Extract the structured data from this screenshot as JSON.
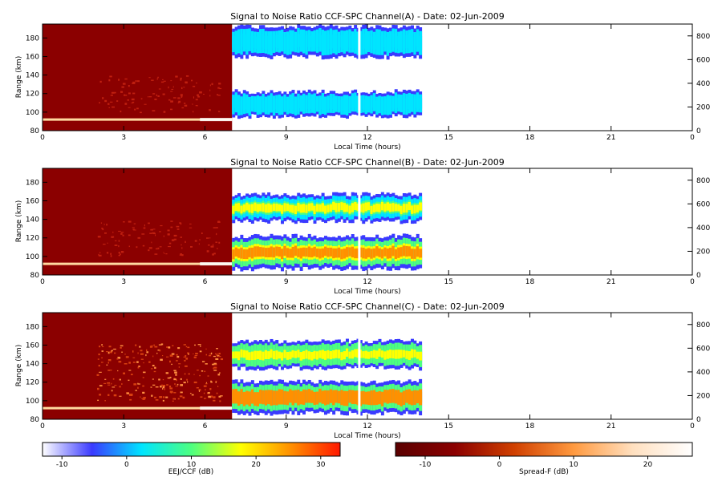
{
  "chart_data": [
    {
      "type": "heatmap",
      "title": "Signal to Noise Ratio CCF-SPC Channel(A) - Date: 02-Jun-2009",
      "xlabel": "Local Time (hours)",
      "ylabel": "Range (km)",
      "xlim": [
        0,
        24
      ],
      "ylim": [
        80,
        195
      ],
      "x_ticks": [
        "0",
        "3",
        "6",
        "9",
        "12",
        "15",
        "18",
        "21",
        "0"
      ],
      "y_ticks": [
        "80",
        "100",
        "120",
        "140",
        "160",
        "180"
      ],
      "y2_ticks": [
        "0",
        "200",
        "400",
        "600",
        "800"
      ],
      "y2lim": [
        0,
        900
      ],
      "spreadf_window_hours": [
        0,
        7
      ],
      "eej_window_hours": [
        7,
        14
      ],
      "data_gap_hour": 11.7,
      "eej_upper_layer_range_y2": [
        620,
        880
      ],
      "eej_lower_layer_range_y2": [
        120,
        330
      ],
      "eej_peak_db": 5
    },
    {
      "type": "heatmap",
      "title": "Signal to Noise Ratio CCF-SPC Channel(B) - Date: 02-Jun-2009",
      "xlabel": "Local Time (hours)",
      "ylabel": "Range (km)",
      "xlim": [
        0,
        24
      ],
      "ylim": [
        80,
        195
      ],
      "x_ticks": [
        "0",
        "3",
        "6",
        "9",
        "12",
        "15",
        "18",
        "21",
        "0"
      ],
      "y_ticks": [
        "80",
        "100",
        "120",
        "140",
        "160",
        "180"
      ],
      "y2_ticks": [
        "0",
        "200",
        "400",
        "600",
        "800"
      ],
      "y2lim": [
        0,
        900
      ],
      "spreadf_window_hours": [
        0,
        7
      ],
      "eej_window_hours": [
        7,
        14
      ],
      "data_gap_hour": 11.7,
      "eej_upper_layer_range_y2": [
        450,
        680
      ],
      "eej_lower_layer_range_y2": [
        50,
        330
      ],
      "eej_peak_db": 28
    },
    {
      "type": "heatmap",
      "title": "Signal to Noise Ratio CCF-SPC Channel(C) - Date: 02-Jun-2009",
      "xlabel": "Local Time (hours)",
      "ylabel": "Range (km)",
      "xlim": [
        0,
        24
      ],
      "ylim": [
        80,
        195
      ],
      "x_ticks": [
        "0",
        "3",
        "6",
        "9",
        "12",
        "15",
        "18",
        "21",
        "0"
      ],
      "y_ticks": [
        "80",
        "100",
        "120",
        "140",
        "160",
        "180"
      ],
      "y2_ticks": [
        "0",
        "200",
        "400",
        "600",
        "800"
      ],
      "y2lim": [
        0,
        900
      ],
      "spreadf_window_hours": [
        0,
        7
      ],
      "eej_window_hours": [
        7,
        14
      ],
      "data_gap_hour": 11.7,
      "eej_upper_layer_range_y2": [
        430,
        660
      ],
      "eej_lower_layer_range_y2": [
        50,
        320
      ],
      "eej_peak_db": 29
    }
  ],
  "colorbars": [
    {
      "label": "EEJ/CCF (dB)",
      "range": [
        -13,
        33
      ],
      "ticks": [
        "-10",
        "0",
        "10",
        "20",
        "30"
      ],
      "tick_values": [
        -10,
        0,
        10,
        20,
        30
      ],
      "colors": [
        "#ffffff",
        "#3a3aff",
        "#00e5ff",
        "#4dff80",
        "#ffff00",
        "#ff9000",
        "#ff1800"
      ]
    },
    {
      "label": "Spread-F (dB)",
      "range": [
        -14,
        26
      ],
      "ticks": [
        "-10",
        "0",
        "10",
        "20"
      ],
      "tick_values": [
        -10,
        0,
        10,
        20
      ],
      "colors": [
        "#5a0000",
        "#8b0000",
        "#d04000",
        "#ff9a40",
        "#ffe0c0",
        "#ffffff"
      ]
    }
  ]
}
